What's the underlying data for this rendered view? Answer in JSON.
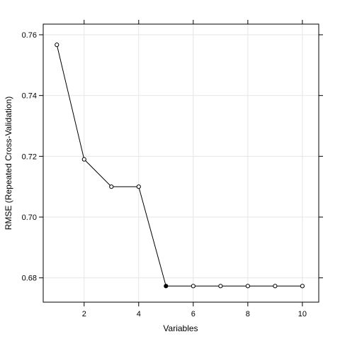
{
  "chart_data": {
    "type": "line",
    "xlabel": "Variables",
    "ylabel": "RMSE (Repeated Cross-Validation)",
    "x": [
      1,
      2,
      3,
      4,
      5,
      6,
      7,
      8,
      9,
      10
    ],
    "series": [
      {
        "values": [
          0.7567,
          0.719,
          0.71,
          0.71,
          0.6773,
          0.6773,
          0.6773,
          0.6773,
          0.6773,
          0.6773
        ],
        "selected_index": 4
      }
    ],
    "xlim": [
      0.5,
      10.6
    ],
    "ylim": [
      0.672,
      0.7635
    ],
    "x_ticks": [
      2,
      4,
      6,
      8,
      10
    ],
    "y_ticks": [
      0.68,
      0.7,
      0.72,
      0.74,
      0.76
    ],
    "x_tick_labels": [
      "2",
      "4",
      "6",
      "8",
      "10"
    ],
    "y_tick_labels": [
      "0.68",
      "0.70",
      "0.72",
      "0.74",
      "0.76"
    ],
    "grid": true,
    "colors": {
      "line": "#000000",
      "grid": "#e6e6e6",
      "frame": "#000000"
    }
  }
}
